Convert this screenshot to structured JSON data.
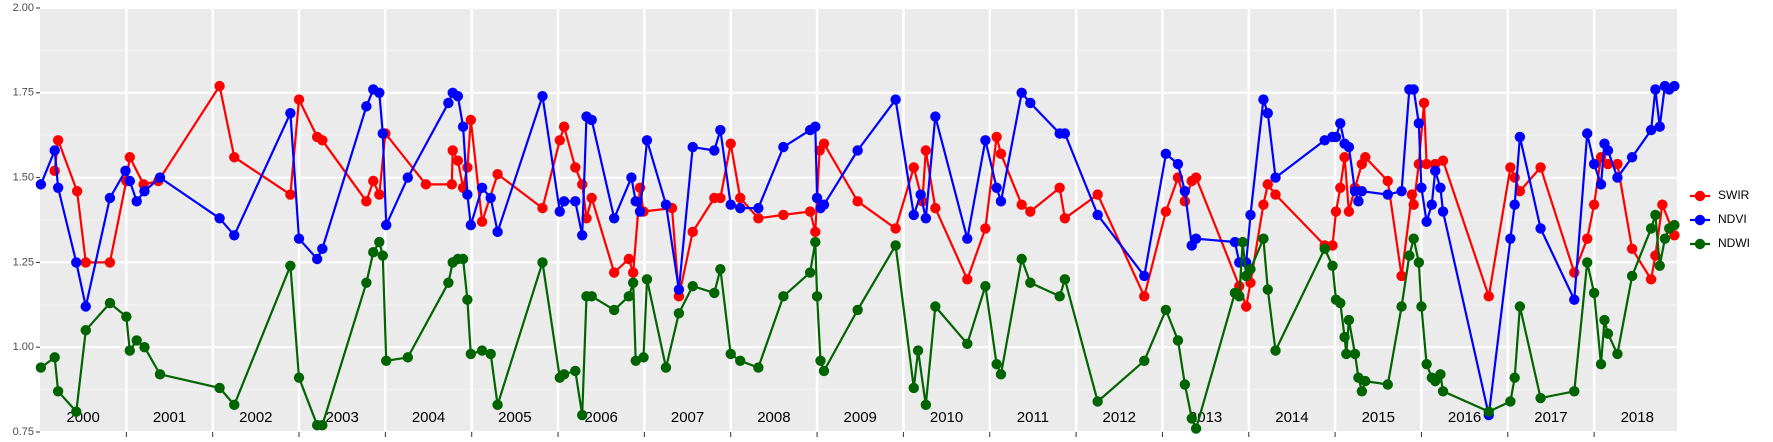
{
  "chart_data": {
    "type": "line",
    "xlim": [
      2000,
      2018.96
    ],
    "xticks": [
      2000,
      2001,
      2002,
      2003,
      2004,
      2005,
      2006,
      2007,
      2008,
      2009,
      2010,
      2011,
      2012,
      2013,
      2014,
      2015,
      2016,
      2017,
      2018
    ],
    "ylim": [
      0.75,
      2.0
    ],
    "yticks": [
      {
        "value": 0.75,
        "label": "0.75"
      },
      {
        "value": 1,
        "label": "1.00"
      },
      {
        "value": 1.25,
        "label": "1.25"
      },
      {
        "value": 1.5,
        "label": "1.50"
      },
      {
        "value": 1.75,
        "label": "1.75"
      },
      {
        "value": 2,
        "label": "2.00"
      }
    ],
    "grid": true,
    "legend": "right",
    "series": [
      {
        "name": "SWIR",
        "color": "#ff0000",
        "x": [
          2000.17,
          2000.21,
          2000.43,
          2000.53,
          2000.81,
          2001.0,
          2001.04,
          2001.2,
          2001.37,
          2002.08,
          2002.25,
          2002.9,
          2003.0,
          2003.21,
          2003.27,
          2003.78,
          2003.86,
          2003.93,
          2004.0,
          2004.47,
          2004.77,
          2004.78,
          2004.84,
          2004.9,
          2004.95,
          2004.99,
          2005.12,
          2005.3,
          2005.82,
          2006.02,
          2006.07,
          2006.2,
          2006.28,
          2006.33,
          2006.39,
          2006.65,
          2006.82,
          2006.87,
          2006.95,
          2006.99,
          2007.32,
          2007.4,
          2007.56,
          2007.81,
          2007.88,
          2008.0,
          2008.11,
          2008.32,
          2008.61,
          2008.92,
          2008.98,
          2009.03,
          2009.08,
          2009.47,
          2009.91,
          2010.12,
          2010.22,
          2010.26,
          2010.37,
          2010.74,
          2010.95,
          2011.08,
          2011.13,
          2011.37,
          2011.47,
          2011.81,
          2011.87,
          2012.25,
          2012.79,
          2013.04,
          2013.18,
          2013.26,
          2013.34,
          2013.39,
          2013.89,
          2013.97,
          2014.02,
          2014.17,
          2014.22,
          2014.31,
          2014.88,
          2014.97,
          2015.01,
          2015.06,
          2015.11,
          2015.16,
          2015.23,
          2015.31,
          2015.35,
          2015.61,
          2015.77,
          2015.89,
          2015.91,
          2015.97,
          2016.03,
          2016.06,
          2016.16,
          2016.25,
          2016.78,
          2017.03,
          2017.08,
          2017.14,
          2017.38,
          2017.77,
          2017.92,
          2018.0,
          2018.08,
          2018.16,
          2018.27,
          2018.44,
          2018.66,
          2018.71,
          2018.79,
          2018.93
        ],
        "values": [
          1.52,
          1.61,
          1.46,
          1.25,
          1.25,
          1.49,
          1.56,
          1.48,
          1.49,
          1.77,
          1.56,
          1.45,
          1.73,
          1.62,
          1.61,
          1.43,
          1.49,
          1.45,
          1.63,
          1.48,
          1.48,
          1.58,
          1.55,
          1.47,
          1.53,
          1.67,
          1.37,
          1.51,
          1.41,
          1.61,
          1.65,
          1.53,
          1.48,
          1.38,
          1.44,
          1.22,
          1.26,
          1.22,
          1.47,
          1.4,
          1.41,
          1.15,
          1.34,
          1.44,
          1.44,
          1.6,
          1.44,
          1.38,
          1.39,
          1.4,
          1.34,
          1.58,
          1.6,
          1.43,
          1.35,
          1.53,
          1.43,
          1.58,
          1.41,
          1.2,
          1.35,
          1.62,
          1.57,
          1.42,
          1.4,
          1.47,
          1.38,
          1.45,
          1.15,
          1.4,
          1.5,
          1.43,
          1.49,
          1.5,
          1.18,
          1.12,
          1.19,
          1.42,
          1.48,
          1.45,
          1.3,
          1.3,
          1.4,
          1.47,
          1.56,
          1.4,
          1.47,
          1.54,
          1.56,
          1.49,
          1.21,
          1.45,
          1.42,
          1.54,
          1.72,
          1.54,
          1.54,
          1.55,
          1.15,
          1.53,
          1.5,
          1.46,
          1.53,
          1.22,
          1.32,
          1.42,
          1.56,
          1.54,
          1.54,
          1.29,
          1.2,
          1.27,
          1.42,
          1.33
        ]
      },
      {
        "name": "NDVI",
        "color": "#0000ff",
        "x": [
          2000.01,
          2000.17,
          2000.21,
          2000.42,
          2000.53,
          2000.81,
          2000.99,
          2001.04,
          2001.12,
          2001.21,
          2001.39,
          2002.08,
          2002.25,
          2002.9,
          2003.0,
          2003.21,
          2003.27,
          2003.78,
          2003.86,
          2003.93,
          2003.97,
          2004.01,
          2004.26,
          2004.73,
          2004.78,
          2004.84,
          2004.9,
          2004.95,
          2004.99,
          2005.12,
          2005.22,
          2005.3,
          2005.82,
          2006.02,
          2006.07,
          2006.2,
          2006.28,
          2006.33,
          2006.39,
          2006.65,
          2006.85,
          2006.9,
          2006.95,
          2007.03,
          2007.25,
          2007.4,
          2007.56,
          2007.81,
          2007.88,
          2008.0,
          2008.11,
          2008.32,
          2008.61,
          2008.92,
          2008.98,
          2009.0,
          2009.04,
          2009.08,
          2009.47,
          2009.91,
          2010.12,
          2010.2,
          2010.26,
          2010.37,
          2010.74,
          2010.95,
          2011.08,
          2011.13,
          2011.37,
          2011.47,
          2011.81,
          2011.87,
          2012.25,
          2012.79,
          2013.04,
          2013.18,
          2013.26,
          2013.34,
          2013.39,
          2013.84,
          2013.89,
          2013.97,
          2014.02,
          2014.17,
          2014.22,
          2014.31,
          2014.88,
          2014.97,
          2015.01,
          2015.06,
          2015.11,
          2015.16,
          2015.23,
          2015.27,
          2015.31,
          2015.61,
          2015.77,
          2015.86,
          2015.91,
          2015.97,
          2016.0,
          2016.06,
          2016.12,
          2016.16,
          2016.22,
          2016.25,
          2016.78,
          2017.03,
          2017.08,
          2017.14,
          2017.38,
          2017.77,
          2017.92,
          2018.0,
          2018.08,
          2018.12,
          2018.16,
          2018.27,
          2018.44,
          2018.66,
          2018.71,
          2018.76,
          2018.82,
          2018.87,
          2018.93
        ],
        "values": [
          1.48,
          1.58,
          1.47,
          1.25,
          1.12,
          1.44,
          1.52,
          1.49,
          1.43,
          1.46,
          1.5,
          1.38,
          1.33,
          1.69,
          1.32,
          1.26,
          1.29,
          1.71,
          1.76,
          1.75,
          1.63,
          1.36,
          1.5,
          1.72,
          1.75,
          1.74,
          1.65,
          1.45,
          1.36,
          1.47,
          1.44,
          1.34,
          1.74,
          1.4,
          1.43,
          1.43,
          1.33,
          1.68,
          1.67,
          1.38,
          1.5,
          1.43,
          1.4,
          1.61,
          1.42,
          1.17,
          1.59,
          1.58,
          1.64,
          1.42,
          1.41,
          1.41,
          1.59,
          1.64,
          1.65,
          1.44,
          1.41,
          1.42,
          1.58,
          1.73,
          1.39,
          1.45,
          1.38,
          1.68,
          1.32,
          1.61,
          1.47,
          1.43,
          1.75,
          1.72,
          1.63,
          1.63,
          1.39,
          1.21,
          1.57,
          1.54,
          1.46,
          1.3,
          1.32,
          1.31,
          1.25,
          1.25,
          1.39,
          1.73,
          1.69,
          1.5,
          1.61,
          1.62,
          1.62,
          1.66,
          1.6,
          1.59,
          1.46,
          1.43,
          1.46,
          1.45,
          1.46,
          1.76,
          1.76,
          1.66,
          1.47,
          1.37,
          1.42,
          1.52,
          1.47,
          1.4,
          0.8,
          1.32,
          1.42,
          1.62,
          1.35,
          1.14,
          1.63,
          1.54,
          1.48,
          1.6,
          1.58,
          1.5,
          1.56,
          1.64,
          1.76,
          1.65,
          1.77,
          1.76,
          1.77
        ]
      },
      {
        "name": "NDWI",
        "color": "#006400",
        "x": [
          2000.01,
          2000.17,
          2000.21,
          2000.42,
          2000.53,
          2000.81,
          2001.0,
          2001.04,
          2001.12,
          2001.21,
          2001.39,
          2002.08,
          2002.25,
          2002.9,
          2003.0,
          2003.21,
          2003.27,
          2003.78,
          2003.86,
          2003.93,
          2003.97,
          2004.01,
          2004.26,
          2004.73,
          2004.78,
          2004.84,
          2004.9,
          2004.95,
          2004.99,
          2005.12,
          2005.22,
          2005.3,
          2005.82,
          2006.02,
          2006.07,
          2006.2,
          2006.28,
          2006.33,
          2006.39,
          2006.65,
          2006.82,
          2006.87,
          2006.9,
          2006.99,
          2007.03,
          2007.25,
          2007.4,
          2007.56,
          2007.81,
          2007.88,
          2008.0,
          2008.11,
          2008.32,
          2008.61,
          2008.92,
          2008.98,
          2009.0,
          2009.04,
          2009.08,
          2009.47,
          2009.91,
          2010.12,
          2010.17,
          2010.26,
          2010.37,
          2010.74,
          2010.95,
          2011.08,
          2011.13,
          2011.37,
          2011.47,
          2011.81,
          2011.87,
          2012.25,
          2012.79,
          2013.04,
          2013.18,
          2013.26,
          2013.34,
          2013.39,
          2013.84,
          2013.89,
          2013.93,
          2013.97,
          2014.02,
          2014.17,
          2014.22,
          2014.31,
          2014.88,
          2014.97,
          2015.01,
          2015.06,
          2015.11,
          2015.13,
          2015.16,
          2015.23,
          2015.27,
          2015.31,
          2015.35,
          2015.61,
          2015.77,
          2015.86,
          2015.91,
          2015.97,
          2016.0,
          2016.06,
          2016.12,
          2016.16,
          2016.22,
          2016.25,
          2016.78,
          2017.03,
          2017.08,
          2017.14,
          2017.38,
          2017.77,
          2017.92,
          2018.0,
          2018.08,
          2018.12,
          2018.16,
          2018.27,
          2018.44,
          2018.66,
          2018.71,
          2018.76,
          2018.82,
          2018.87,
          2018.93
        ],
        "values": [
          0.94,
          0.97,
          0.87,
          0.81,
          1.05,
          1.13,
          1.09,
          0.99,
          1.02,
          1.0,
          0.92,
          0.88,
          0.83,
          1.24,
          0.91,
          0.77,
          0.77,
          1.19,
          1.28,
          1.31,
          1.27,
          0.96,
          0.97,
          1.19,
          1.25,
          1.26,
          1.26,
          1.14,
          0.98,
          0.99,
          0.98,
          0.83,
          1.25,
          0.91,
          0.92,
          0.93,
          0.8,
          1.15,
          1.15,
          1.11,
          1.15,
          1.19,
          0.96,
          0.97,
          1.2,
          0.94,
          1.1,
          1.18,
          1.16,
          1.23,
          0.98,
          0.96,
          0.94,
          1.15,
          1.22,
          1.31,
          1.15,
          0.96,
          0.93,
          1.11,
          1.3,
          0.88,
          0.99,
          0.83,
          1.12,
          1.01,
          1.18,
          0.95,
          0.92,
          1.26,
          1.19,
          1.15,
          1.2,
          0.84,
          0.96,
          1.11,
          1.02,
          0.89,
          0.79,
          0.76,
          1.16,
          1.15,
          1.31,
          1.21,
          1.23,
          1.32,
          1.17,
          0.99,
          1.29,
          1.24,
          1.14,
          1.13,
          1.03,
          0.98,
          1.08,
          0.98,
          0.91,
          0.87,
          0.9,
          0.89,
          1.12,
          1.27,
          1.32,
          1.25,
          1.12,
          0.95,
          0.91,
          0.9,
          0.92,
          0.87,
          0.81,
          0.84,
          0.91,
          1.12,
          0.85,
          0.87,
          1.25,
          1.16,
          0.95,
          1.08,
          1.04,
          0.98,
          1.21,
          1.35,
          1.39,
          1.24,
          1.32,
          1.35,
          1.36
        ]
      }
    ]
  }
}
